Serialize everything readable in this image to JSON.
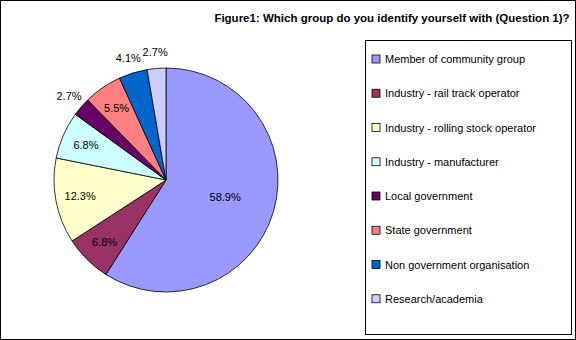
{
  "chart_data": {
    "type": "pie",
    "title": "Figure1: Which group do you identify yourself with (Question 1)?",
    "categories": [
      "Member of community group",
      "Industry - rail track operator",
      "Industry - rolling stock operator",
      "Industry - manufacturer",
      "Local government",
      "State government",
      "Non government organisation",
      "Research/academia"
    ],
    "values": [
      58.9,
      6.8,
      12.3,
      6.8,
      2.7,
      5.5,
      4.1,
      2.7
    ],
    "value_labels": [
      "58.9%",
      "6.8%",
      "12.3%",
      "6.8%",
      "2.7%",
      "5.5%",
      "4.1%",
      "2.7%"
    ],
    "colors": [
      "#9999ff",
      "#993366",
      "#ffffcc",
      "#ccffff",
      "#660066",
      "#ff8080",
      "#0066cc",
      "#ccccff"
    ],
    "data_labels": true,
    "legend": "right"
  }
}
